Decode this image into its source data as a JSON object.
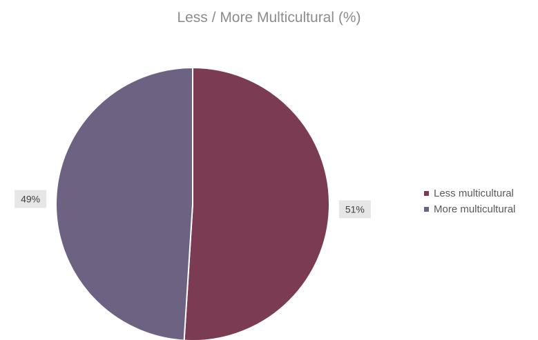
{
  "chart_data": {
    "type": "pie",
    "title": "Less / More Multicultural (%)",
    "categories": [
      "Less multicultural",
      "More multicultural"
    ],
    "values": [
      51,
      49
    ],
    "data_labels": [
      "51%",
      "49%"
    ],
    "colors": [
      "#7b3c53",
      "#6d6282"
    ],
    "legend_position": "right",
    "start_angle_deg": 0,
    "direction": "clockwise"
  }
}
